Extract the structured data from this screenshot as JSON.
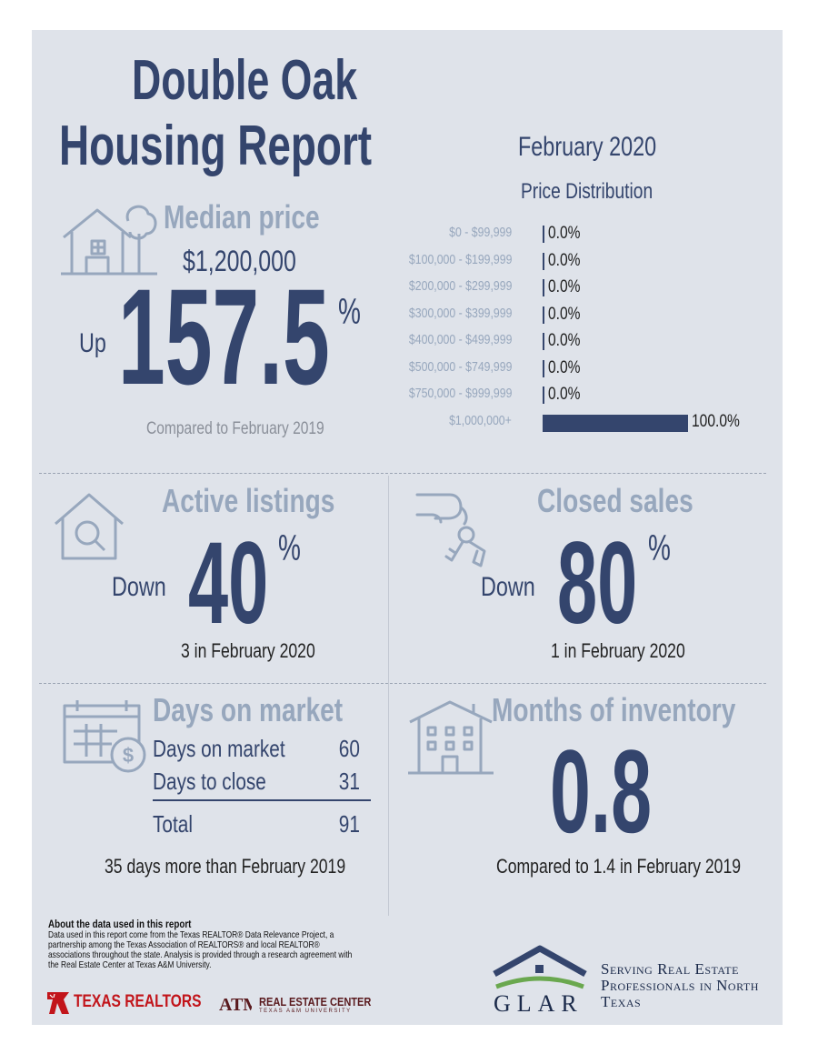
{
  "header": {
    "title_line1": "Double Oak",
    "title_line2": "Housing Report",
    "period": "February 2020"
  },
  "median": {
    "heading": "Median price",
    "price": "$1,200,000",
    "direction": "Up",
    "change": "157.5",
    "pct_sign": "%",
    "compare": "Compared to February 2019",
    "icon": "house-tree-icon"
  },
  "price_distribution": {
    "title": "Price Distribution",
    "rows": [
      {
        "label": "$0 - $99,999",
        "value": "0.0%",
        "share": 0.0
      },
      {
        "label": "$100,000 - $199,999",
        "value": "0.0%",
        "share": 0.0
      },
      {
        "label": "$200,000 - $299,999",
        "value": "0.0%",
        "share": 0.0
      },
      {
        "label": "$300,000 - $399,999",
        "value": "0.0%",
        "share": 0.0
      },
      {
        "label": "$400,000 - $499,999",
        "value": "0.0%",
        "share": 0.0
      },
      {
        "label": "$500,000 - $749,999",
        "value": "0.0%",
        "share": 0.0
      },
      {
        "label": "$750,000 - $999,999",
        "value": "0.0%",
        "share": 0.0
      },
      {
        "label": "$1,000,000+",
        "value": "100.0%",
        "share": 1.0
      }
    ]
  },
  "active": {
    "heading": "Active listings",
    "direction": "Down",
    "change": "40",
    "pct_sign": "%",
    "detail": "3 in February 2020",
    "icon": "house-magnifier-icon"
  },
  "closed": {
    "heading": "Closed sales",
    "direction": "Down",
    "change": "80",
    "pct_sign": "%",
    "detail": "1 in February 2020",
    "icon": "hand-keys-icon"
  },
  "dom": {
    "heading": "Days on market",
    "rows": [
      {
        "label": "Days on market",
        "value": "60"
      },
      {
        "label": "Days to close",
        "value": "31"
      }
    ],
    "total_label": "Total",
    "total_value": "91",
    "note": "35 days more than February 2019",
    "icon": "calendar-dollar-icon"
  },
  "inventory": {
    "heading": "Months of inventory",
    "value": "0.8",
    "note": "Compared to 1.4 in February 2019",
    "icon": "apartment-building-icon"
  },
  "footer": {
    "about_heading": "About the data used in this report",
    "about_text": "Data used in this report come from the Texas REALTOR® Data Relevance Project, a partnership among the Texas Association of REALTORS® and local REALTOR® associations throughout the state. Analysis is provided through a research agreement with the Real Estate Center at Texas A&M University.",
    "texas_realtors": "TEXAS REALTORS",
    "rec_name": "REAL ESTATE CENTER",
    "rec_sub": "TEXAS A&M UNIVERSITY",
    "glar": "GLAR",
    "serving": "Serving Real Estate Professionals in North Texas"
  },
  "colors": {
    "panel": "#dfe3ea",
    "navy": "#34456d",
    "pale": "#97a7bd",
    "texas_red": "#c2151b",
    "maroon": "#5a1a1e",
    "glar_green": "#6aa84f"
  }
}
